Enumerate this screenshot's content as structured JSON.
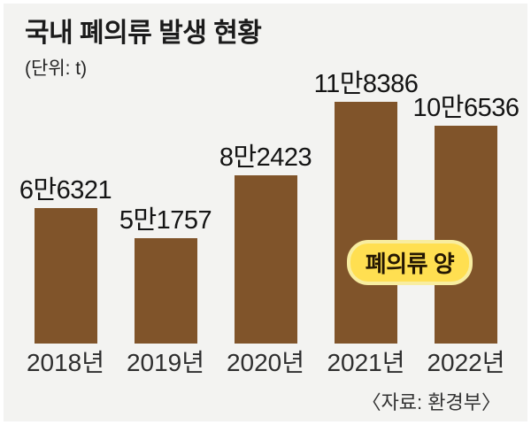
{
  "title": "국내 폐의류 발생 현황",
  "unit_label": "(단위: t)",
  "badge_label": "폐의류 양",
  "source_note": "〈자료: 환경부〉",
  "colors": {
    "bar": "#80542a",
    "panel_bg": "#f3f3f1",
    "badge_fill": "#ffdf51",
    "badge_border": "#f8eda0",
    "badge_text": "#241703"
  },
  "chart_data": {
    "type": "bar",
    "title": "국내 폐의류 발생 현황",
    "unit": "t",
    "categories": [
      "2018년",
      "2019년",
      "2020년",
      "2021년",
      "2022년"
    ],
    "values": [
      66321,
      51757,
      82423,
      118386,
      106536
    ],
    "value_labels": [
      "6만6321",
      "5만1757",
      "8만2423",
      "11만8386",
      "10만6536"
    ],
    "series_label": "폐의류 양",
    "source": "〈자료: 환경부〉",
    "ylim": [
      0,
      130000
    ],
    "grid": false,
    "legend_position": "inside-right",
    "bar_color": "#80542a"
  }
}
